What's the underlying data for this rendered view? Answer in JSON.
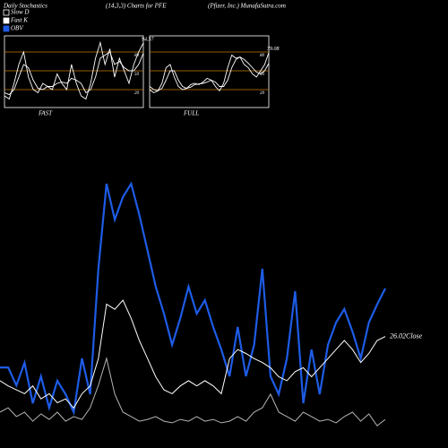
{
  "header": {
    "title": "Daily Stochastics",
    "subtitle": "(14,3,3) Charts for PFE",
    "source": "(Pfizer, Inc.) MunafaSutra.com"
  },
  "chart_data": [
    {
      "type": "line",
      "label": "FAST",
      "ylim": [
        0,
        100
      ],
      "yticks": [
        20,
        50,
        80
      ],
      "grid_color": "#c87800",
      "series": [
        {
          "name": "Slow D",
          "color": "#ffffff",
          "values": [
            15,
            12,
            20,
            40,
            60,
            55,
            35,
            22,
            20,
            25,
            25,
            30,
            32,
            30,
            38,
            35,
            30,
            15,
            20,
            40,
            70,
            75,
            80,
            60,
            65,
            55,
            50,
            50,
            60,
            78
          ]
        },
        {
          "name": "Fast K",
          "color": "#ffffff",
          "values": [
            10,
            5,
            30,
            60,
            80,
            40,
            20,
            15,
            30,
            25,
            20,
            45,
            30,
            20,
            60,
            30,
            10,
            5,
            30,
            70,
            95,
            60,
            85,
            40,
            70,
            50,
            30,
            60,
            80,
            94.37
          ]
        }
      ]
    },
    {
      "type": "line",
      "label": "FULL",
      "ylim": [
        0,
        100
      ],
      "yticks": [
        20,
        50,
        80
      ],
      "grid_color": "#c87800",
      "series": [
        {
          "name": "Slow D",
          "color": "#ffffff",
          "values": [
            25,
            20,
            18,
            22,
            35,
            50,
            50,
            35,
            25,
            22,
            24,
            28,
            29,
            30,
            32,
            35,
            32,
            25,
            25,
            35,
            55,
            68,
            72,
            68,
            62,
            55,
            48,
            45,
            50,
            62
          ]
        },
        {
          "name": "Fast K",
          "color": "#ffffff",
          "values": [
            20,
            15,
            18,
            30,
            55,
            60,
            40,
            25,
            20,
            22,
            28,
            30,
            28,
            32,
            38,
            35,
            25,
            18,
            30,
            55,
            75,
            70,
            72,
            60,
            55,
            45,
            40,
            50,
            60,
            79.08
          ]
        }
      ]
    },
    {
      "type": "line",
      "ylim": [
        0,
        100
      ],
      "y2lim": [
        25.3,
        27.3
      ],
      "series": [
        {
          "name": "OBV",
          "color": "#1e5ce6",
          "values": [
            24.1,
            24.1,
            17.2,
            25.9,
            10.3,
            20.7,
            8.6,
            19.0,
            13.8,
            6.9,
            27.6,
            13.8,
            62.1,
            94.8,
            81.0,
            89.7,
            94.8,
            82.8,
            69.0,
            55.2,
            44.8,
            32.8,
            43.1,
            55.2,
            44.8,
            50.0,
            39.7,
            31.0,
            20.7,
            39.7,
            20.7,
            32.8,
            62.1,
            20.7,
            13.8,
            27.6,
            53.4,
            10.3,
            31.0,
            13.8,
            32.8,
            41.4,
            46.6,
            37.9,
            27.6,
            41.4,
            48.3,
            54.5
          ]
        },
        {
          "name": "Close",
          "color": "#ffffff",
          "axis": "y2",
          "values": [
            25.68,
            25.64,
            25.61,
            25.58,
            25.64,
            25.54,
            25.58,
            25.51,
            25.54,
            25.47,
            25.58,
            25.64,
            25.85,
            26.27,
            26.23,
            26.3,
            26.16,
            25.99,
            25.85,
            25.71,
            25.61,
            25.58,
            25.64,
            25.68,
            25.64,
            25.68,
            25.64,
            25.58,
            25.85,
            25.92,
            25.89,
            25.85,
            25.82,
            25.78,
            25.71,
            25.68,
            25.75,
            25.78,
            25.71,
            25.78,
            25.85,
            25.92,
            25.99,
            25.92,
            25.82,
            25.89,
            25.99,
            26.02
          ]
        },
        {
          "color": "#b4b4b4",
          "values": [
            6.9,
            8.6,
            5.2,
            6.9,
            3.4,
            6.2,
            4.1,
            6.9,
            3.4,
            5.2,
            4.1,
            8.6,
            17.2,
            27.6,
            13.8,
            6.9,
            5.2,
            3.4,
            4.1,
            5.2,
            3.4,
            2.8,
            4.1,
            3.4,
            5.2,
            3.4,
            4.1,
            2.8,
            3.4,
            5.2,
            3.4,
            6.9,
            8.6,
            13.8,
            6.9,
            5.2,
            3.4,
            6.9,
            5.2,
            3.4,
            4.1,
            2.8,
            5.2,
            6.9,
            3.4,
            6.2,
            1.7,
            4.1
          ]
        }
      ]
    }
  ]
}
